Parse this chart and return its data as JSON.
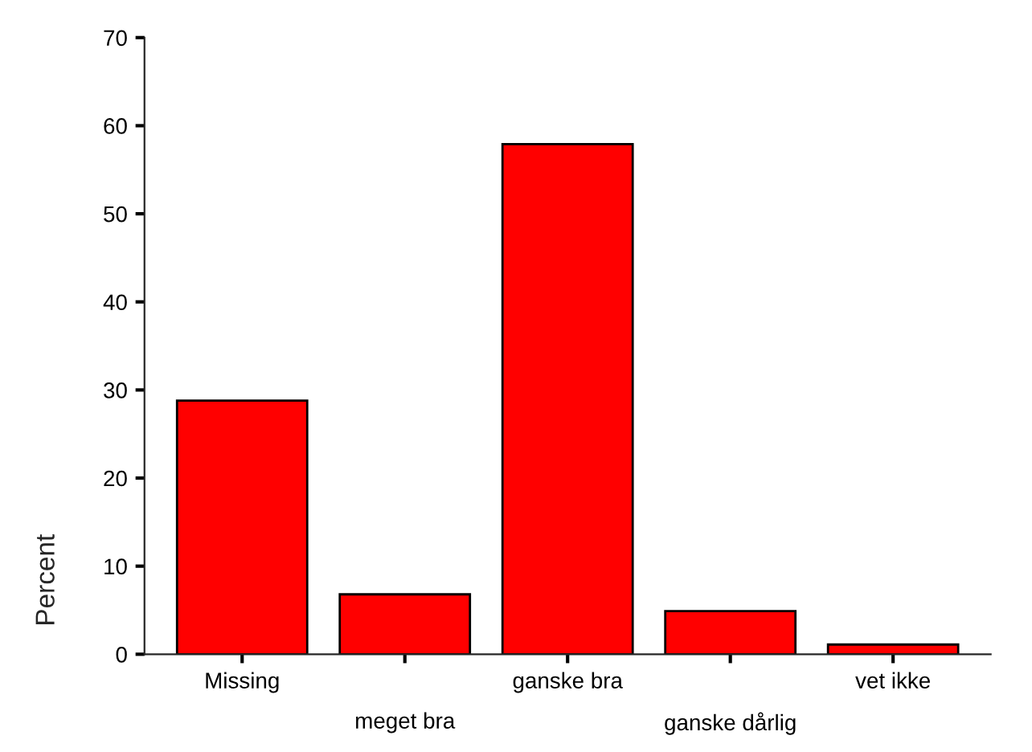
{
  "chart_data": {
    "type": "bar",
    "ylabel": "Percent",
    "categories": [
      "Missing",
      "meget bra",
      "ganske bra",
      "ganske dårlig",
      "vet ikke"
    ],
    "values": [
      28.8,
      6.8,
      57.9,
      4.9,
      1.1
    ],
    "color": "#ff0000",
    "ylim": [
      0,
      70
    ],
    "yticks": [
      0,
      10,
      20,
      30,
      40,
      50,
      60,
      70
    ],
    "grid": false,
    "legend": false
  }
}
